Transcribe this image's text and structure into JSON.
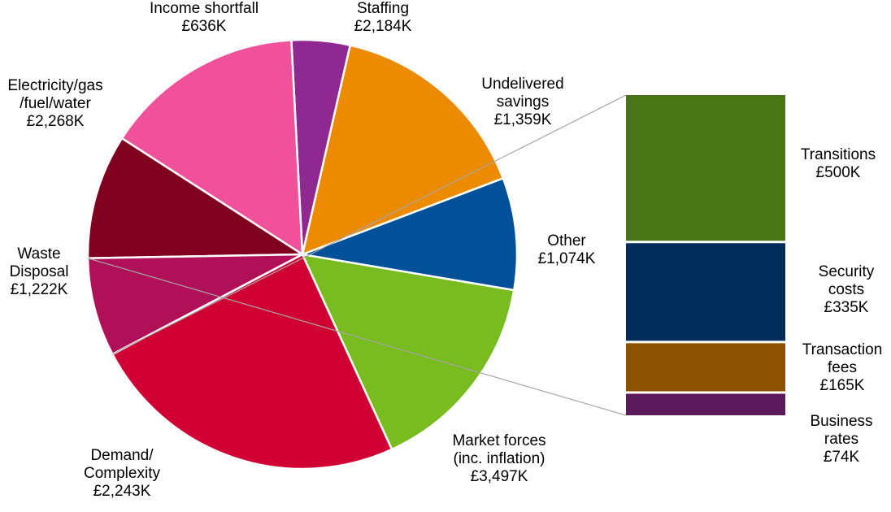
{
  "chart_data": [
    {
      "type": "pie",
      "unit": "£K",
      "slices": [
        {
          "name": "Market forces (inc. inflation)",
          "lines": [
            "Market forces",
            "(inc. inflation)",
            "£3,497K"
          ],
          "value": 3497,
          "color": "#d10034"
        },
        {
          "name": "Demand/ Complexity",
          "lines": [
            "Demand/",
            "Complexity",
            "£2,243K"
          ],
          "value": 2243,
          "color": "#78bc1f"
        },
        {
          "name": "Waste Disposal",
          "lines": [
            "Waste",
            "Disposal",
            "£1,222K"
          ],
          "value": 1222,
          "color": "#00509a"
        },
        {
          "name": "Electricity/gas/fuel/water",
          "lines": [
            "Electricity/gas",
            "/fuel/water",
            "£2,268K"
          ],
          "value": 2268,
          "color": "#ec8b00"
        },
        {
          "name": "Income shortfall",
          "lines": [
            "Income shortfall",
            "£636K"
          ],
          "value": 636,
          "color": "#8f2890"
        },
        {
          "name": "Staffing",
          "lines": [
            "Staffing",
            "£2,184K"
          ],
          "value": 2184,
          "color": "#f0519a"
        },
        {
          "name": "Undelivered savings",
          "lines": [
            "Undelivered",
            "savings",
            "£1,359K"
          ],
          "value": 1359,
          "color": "#800020"
        },
        {
          "name": "Other",
          "lines": [
            "Other",
            "£1,074K"
          ],
          "value": 1074,
          "color": "#b01058"
        }
      ]
    },
    {
      "type": "bar",
      "stacked": true,
      "breakdown_of": "Other",
      "segments": [
        {
          "name": "Transitions",
          "lines": [
            "Transitions",
            "£500K"
          ],
          "value": 500,
          "color": "#4a7516"
        },
        {
          "name": "Security costs",
          "lines": [
            "Security",
            "costs",
            "£335K"
          ],
          "value": 335,
          "color": "#002d5c"
        },
        {
          "name": "Transaction fees",
          "lines": [
            "Transaction",
            "fees",
            "£165K"
          ],
          "value": 165,
          "color": "#8d5200"
        },
        {
          "name": "Business rates",
          "lines": [
            "Business",
            "rates",
            "£74K"
          ],
          "value": 74,
          "color": "#5a1a5c"
        }
      ]
    }
  ]
}
